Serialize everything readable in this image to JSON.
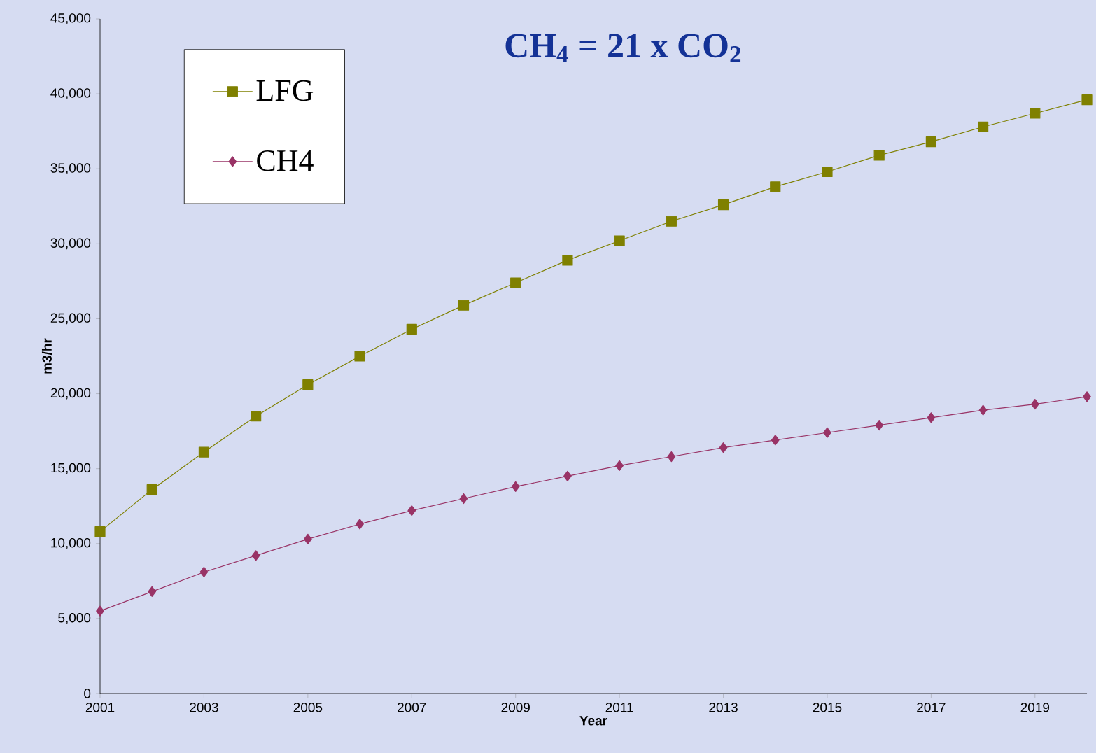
{
  "chart_data": {
    "type": "line",
    "xlabel": "Year",
    "ylabel": "m3/hr",
    "annotations": [
      "CH$_{4}$ = 21 x CO$_{2}$"
    ],
    "x": [
      2001,
      2002,
      2003,
      2004,
      2005,
      2006,
      2007,
      2008,
      2009,
      2010,
      2011,
      2012,
      2013,
      2014,
      2015,
      2016,
      2017,
      2018,
      2019,
      2020
    ],
    "series": [
      {
        "name": "LFG",
        "color": "#7f8000",
        "marker": "square",
        "values": [
          10800,
          13600,
          16100,
          18500,
          20600,
          22500,
          24300,
          25900,
          27400,
          28900,
          30200,
          31500,
          32600,
          33800,
          34800,
          35900,
          36800,
          37800,
          38700,
          39600
        ]
      },
      {
        "name": "CH4",
        "color": "#993366",
        "marker": "diamond",
        "values": [
          5500,
          6800,
          8100,
          9200,
          10300,
          11300,
          12200,
          13000,
          13800,
          14500,
          15200,
          15800,
          16400,
          16900,
          17400,
          17900,
          18400,
          18900,
          19300,
          19800
        ]
      }
    ],
    "xlim": [
      2001,
      2020
    ],
    "xticks": [
      2001,
      2003,
      2005,
      2007,
      2009,
      2011,
      2013,
      2015,
      2017,
      2019
    ],
    "ylim": [
      0,
      45000
    ],
    "yticks": [
      {
        "value": 0,
        "label": "0"
      },
      {
        "value": 5000,
        "label": "5,000"
      },
      {
        "value": 10000,
        "label": "10,000"
      },
      {
        "value": 15000,
        "label": "15,000"
      },
      {
        "value": 20000,
        "label": "20,000"
      },
      {
        "value": 25000,
        "label": "25,000"
      },
      {
        "value": 30000,
        "label": "30,000"
      },
      {
        "value": 35000,
        "label": "35,000"
      },
      {
        "value": 40000,
        "label": "40,000"
      },
      {
        "value": 45000,
        "label": "45,000"
      }
    ],
    "grid": false,
    "legend": "top left",
    "line_style": "solid"
  }
}
